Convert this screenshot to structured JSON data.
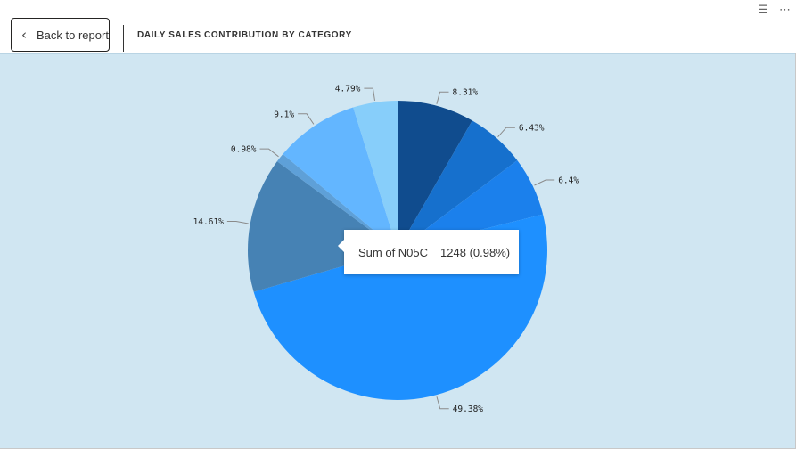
{
  "header": {
    "back_label": "Back to report",
    "back_icon": "chevron-left-icon",
    "title": "DAILY SALES CONTRIBUTION BY CATEGORY",
    "filter_icon": "filter-icon",
    "more_icon": "more-options-icon"
  },
  "tooltip": {
    "label": "Sum of N05C",
    "value": "1248 (0.98%)"
  },
  "chart_data": {
    "type": "pie",
    "slices": [
      {
        "label": "8.31%",
        "value": 8.31,
        "color": "#104c8e"
      },
      {
        "label": "6.43%",
        "value": 6.43,
        "color": "#1670cd"
      },
      {
        "label": "6.4%",
        "value": 6.4,
        "color": "#1b80ec"
      },
      {
        "label": "49.38%",
        "value": 49.38,
        "color": "#1e90ff"
      },
      {
        "label": "14.61%",
        "value": 14.61,
        "color": "#4682b4"
      },
      {
        "label": "0.98%",
        "value": 0.98,
        "color": "#5ea0d8"
      },
      {
        "label": "9.1%",
        "value": 9.1,
        "color": "#63b6ff"
      },
      {
        "label": "4.79%",
        "value": 4.79,
        "color": "#87cefa"
      }
    ],
    "start_angle_deg": 0,
    "direction": "clockwise",
    "legend": "none"
  }
}
